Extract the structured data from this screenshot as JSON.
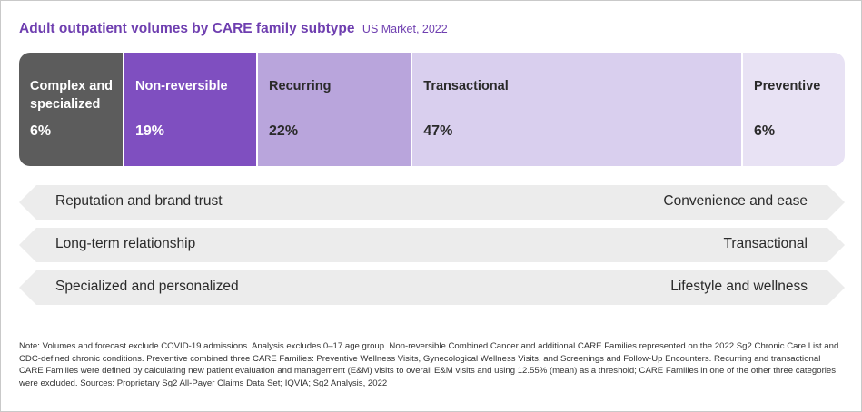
{
  "title": "Adult outpatient volumes by CARE family subtype",
  "subtitle": "US Market, 2022",
  "colors": {
    "complex": "#5c5c5c",
    "nonreversible": "#7f4fc0",
    "recurring": "#b9a5dc",
    "transactional": "#d9cfee",
    "preventive": "#e8e2f4",
    "arrow": "#ececec",
    "title": "#6f3fb0"
  },
  "chart_data": {
    "type": "bar",
    "orientation": "horizontal-stacked",
    "categories": [
      "Complex and specialized",
      "Non-reversible",
      "Recurring",
      "Transactional",
      "Preventive"
    ],
    "values": [
      6,
      19,
      22,
      47,
      6
    ],
    "value_labels": [
      "6%",
      "19%",
      "22%",
      "47%",
      "6%"
    ],
    "title": "Adult outpatient volumes by CARE family subtype",
    "subtitle": "US Market, 2022"
  },
  "arrows": [
    {
      "left": "Reputation and brand trust",
      "right": "Convenience and ease"
    },
    {
      "left": "Long-term relationship",
      "right": "Transactional"
    },
    {
      "left": "Specialized and personalized",
      "right": "Lifestyle and wellness"
    }
  ],
  "note": "Note: Volumes and forecast exclude COVID-19 admissions. Analysis excludes 0–17 age group. Non-reversible Combined Cancer and additional CARE Families represented on the 2022 Sg2 Chronic Care List and CDC-defined chronic conditions. Preventive combined three CARE Families: Preventive Wellness Visits, Gynecological Wellness Visits, and Screenings and Follow-Up Encounters. Recurring and transactional CARE Families were defined by calculating new patient evaluation and management (E&M) visits to overall E&M visits and using 12.55% (mean) as a threshold; CARE Families in one of the other three categories were excluded. Sources: Proprietary Sg2 All-Payer Claims Data Set; IQVIA; Sg2 Analysis, 2022"
}
